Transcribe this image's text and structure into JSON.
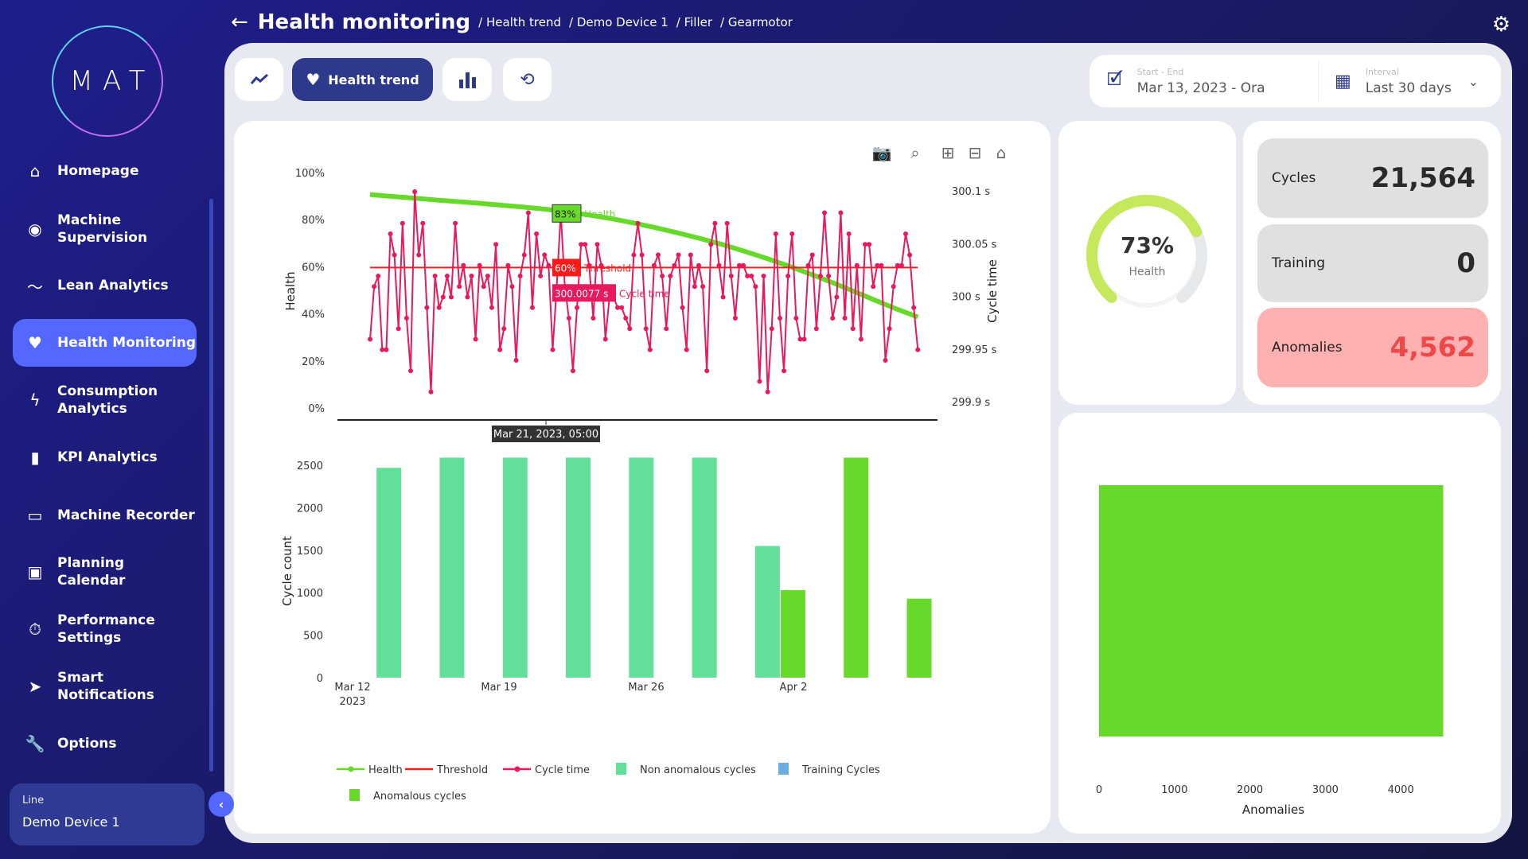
{
  "logo": "MAT",
  "sidebar": {
    "items": [
      {
        "label": "Homepage",
        "icon": "home-icon"
      },
      {
        "label": "Machine\nSupervision",
        "icon": "eye-icon"
      },
      {
        "label": "Lean Analytics",
        "icon": "trend-icon"
      },
      {
        "label": "Health Monitoring",
        "icon": "heart-pulse-icon",
        "active": true
      },
      {
        "label": "Consumption\nAnalytics",
        "icon": "lightning-icon"
      },
      {
        "label": "KPI Analytics",
        "icon": "bar-chart-icon"
      },
      {
        "label": "Machine Recorder",
        "icon": "recorder-icon"
      },
      {
        "label": "Planning\nCalendar",
        "icon": "calendar-icon"
      },
      {
        "label": "Performance\nSettings",
        "icon": "stopwatch-icon"
      },
      {
        "label": "Smart\nNotifications",
        "icon": "send-icon"
      },
      {
        "label": "Options",
        "icon": "wrench-icon"
      }
    ],
    "line_label": "Line",
    "line_value": "Demo Device 1"
  },
  "header": {
    "title": "Health monitoring",
    "breadcrumb": [
      "/ Health trend",
      "/ Demo Device 1",
      "/ Filler",
      "/ Gearmotor"
    ]
  },
  "toolbar": {
    "health_trend_label": "Health trend"
  },
  "filters": {
    "start_end_label": "Start - End",
    "start_end_value": "Mar 13, 2023 - Ora",
    "interval_label": "Interval",
    "interval_value": "Last 30 days"
  },
  "gauge": {
    "value": 73,
    "value_text": "73%",
    "label": "Health",
    "color": "#c5e85c"
  },
  "stats": {
    "cycles_label": "Cycles",
    "cycles": "21,564",
    "training_label": "Training",
    "training": "0",
    "anomalies_label": "Anomalies",
    "anomalies": "4,562"
  },
  "colors": {
    "health": "#66d92a",
    "threshold": "#ff1a1a",
    "cycle_time": "#e8195c",
    "non_anomalous": "#62e09a",
    "training": "#6aaee0",
    "anomalous": "#66d92a"
  },
  "chart_data": [
    {
      "type": "line",
      "ylabel": "Health",
      "y2label": "Cycle time",
      "yticks": [
        "100%",
        "80%",
        "60%",
        "40%",
        "20%",
        "0%"
      ],
      "ylim": [
        0,
        100
      ],
      "y2ticks": [
        "300.1 s",
        "300.05 s",
        "300 s",
        "299.95 s",
        "299.9 s"
      ],
      "y2lim": [
        299.9,
        300.1
      ],
      "series": [
        {
          "name": "Health",
          "start": "2023-03-12T20:00",
          "end": "2023-04-07T21:00",
          "values": [
            91,
            90.2,
            89.5,
            88.7,
            88,
            87.3,
            86.5,
            85.7,
            84.8,
            83.6,
            82.3,
            80.8,
            79,
            77,
            74.8,
            72.5,
            70,
            67.2,
            64.2,
            61,
            57.6,
            54,
            50.2,
            46.3,
            42.5,
            39
          ]
        },
        {
          "name": "Threshold",
          "value": 60
        },
        {
          "name": "Cycle time",
          "start": "2023-03-12T20:00",
          "end": "2023-04-07T21:00",
          "values": [
            299.96,
            300.01,
            300.02,
            299.95,
            299.95,
            300.06,
            300.04,
            299.97,
            300.07,
            299.98,
            299.93,
            300.1,
            300.04,
            300.07,
            299.99,
            299.91,
            300.02,
            299.99,
            300,
            300.02,
            300,
            300.07,
            300.01,
            300.03,
            300,
            300.02,
            299.96,
            300.03,
            300.01,
            300.02,
            299.99,
            300.05,
            299.95,
            299.97,
            300.03,
            300.01,
            299.94,
            300.02,
            300.04,
            300.08,
            299.99,
            300.06,
            300.02,
            300.04,
            300.03,
            299.95,
            300.01,
            300.08,
            300.01,
            299.98,
            299.93,
            299.99,
            300.05,
            300.05,
            300.03,
            299.98,
            300.05,
            300.03,
            299.96,
            300,
            300,
            299.99,
            299.99,
            299.98,
            299.97,
            300.04,
            300.07,
            300.04,
            299.97,
            299.95,
            300.03,
            300.04,
            300.02,
            299.97,
            300.02,
            300.03,
            300.04,
            299.99,
            299.95,
            300.04,
            300.01,
            300.03,
            300.01,
            299.93,
            300.05,
            300.07,
            300.03,
            300,
            300.07,
            300.02,
            299.98,
            300.03,
            300.03,
            300.02,
            300.02,
            300.01,
            299.92,
            300.02,
            299.91,
            299.97,
            300.06,
            299.98,
            299.93,
            300.02,
            300.06,
            299.98,
            299.96,
            299.96,
            300.03,
            300.04,
            299.97,
            300.02,
            300.08,
            300.02,
            299.98,
            300,
            300.08,
            299.98,
            300.06,
            299.97,
            300.03,
            299.96,
            300.05,
            300.05,
            300.01,
            300.03,
            300.03,
            299.94,
            299.97,
            300.01,
            300.03,
            300.03,
            300.06,
            300.04,
            299.99,
            299.95
          ]
        }
      ],
      "hover": {
        "date": "Mar 21, 2023, 05:00",
        "health": "83%",
        "health_label": "Health",
        "threshold": "60%",
        "threshold_label": "Threshold",
        "cycle_time": "300.0077 s",
        "cycle_label": "Cycle time"
      }
    },
    {
      "type": "bar",
      "ylabel": "Cycle count",
      "ylim": [
        0,
        2600
      ],
      "yticks": [
        "2500",
        "2000",
        "1500",
        "1000",
        "500",
        "0"
      ],
      "xticks": [
        "Mar 12\n2023",
        "Mar 19",
        "Mar 26",
        "Apr 2"
      ],
      "bins": [
        "2023-03-14T08:00",
        "2023-03-17T08:00",
        "2023-03-20T08:00",
        "2023-03-23T08:00",
        "2023-03-26T08:00",
        "2023-03-29T08:00",
        "2023-04-01T08:00",
        "2023-04-04T08:00",
        "2023-04-07T08:00"
      ],
      "series": [
        {
          "name": "Non anomalous cycles",
          "values": [
            2470,
            2590,
            2590,
            2590,
            2590,
            2590,
            1550,
            0,
            0
          ]
        },
        {
          "name": "Training Cycles",
          "values": [
            0,
            0,
            0,
            0,
            0,
            0,
            0,
            0,
            0
          ]
        },
        {
          "name": "Anomalous cycles",
          "values": [
            0,
            0,
            0,
            0,
            0,
            0,
            1030,
            2590,
            930
          ]
        }
      ],
      "legend": [
        "Health",
        "Threshold",
        "Cycle time",
        "Non anomalous cycles",
        "Training Cycles",
        "Anomalous cycles"
      ],
      "legend_placement": "bottom"
    },
    {
      "type": "bar",
      "orientation": "horizontal",
      "xlabel": "Anomalies",
      "xlim": [
        0,
        4562
      ],
      "xticks": [
        "0",
        "1000",
        "2000",
        "3000",
        "4000"
      ],
      "values": [
        4562
      ]
    }
  ]
}
